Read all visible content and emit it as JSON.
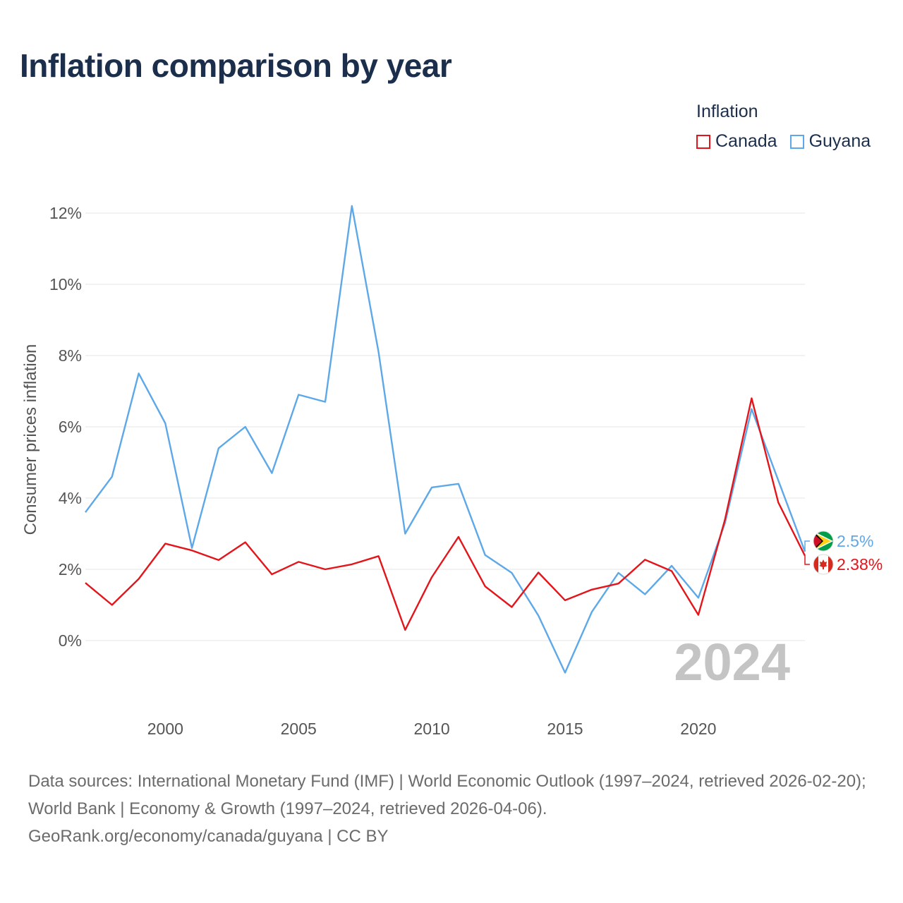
{
  "title": "Inflation comparison by year",
  "legend": {
    "title": "Inflation",
    "items": [
      {
        "label": "Canada",
        "color": "#e3151a"
      },
      {
        "label": "Guyana",
        "color": "#5da8e8"
      }
    ]
  },
  "chart_data": {
    "type": "line",
    "title": "Inflation comparison by year",
    "xlabel": "",
    "ylabel": "Consumer prices inflation",
    "x": [
      1997,
      1998,
      1999,
      2000,
      2001,
      2002,
      2003,
      2004,
      2005,
      2006,
      2007,
      2008,
      2009,
      2010,
      2011,
      2012,
      2013,
      2014,
      2015,
      2016,
      2017,
      2018,
      2019,
      2020,
      2021,
      2022,
      2023,
      2024
    ],
    "xlim": [
      1997,
      2024
    ],
    "ylim": [
      -2,
      12
    ],
    "xticks": [
      2000,
      2005,
      2010,
      2015,
      2020
    ],
    "xtick_labels": [
      "2000",
      "2005",
      "2010",
      "2015",
      "2020"
    ],
    "yticks": [
      0,
      2,
      4,
      6,
      8,
      10,
      12
    ],
    "ytick_labels": [
      "0%",
      "2%",
      "4%",
      "6%",
      "8%",
      "10%",
      "12%"
    ],
    "grid": true,
    "legend_position": "top-right",
    "current_year": "2024",
    "series": [
      {
        "name": "Canada",
        "color": "#e3151a",
        "values": [
          1.62,
          1.0,
          1.73,
          2.72,
          2.53,
          2.26,
          2.76,
          1.86,
          2.21,
          2.0,
          2.14,
          2.37,
          0.3,
          1.78,
          2.91,
          1.52,
          0.94,
          1.91,
          1.13,
          1.43,
          1.6,
          2.27,
          1.95,
          0.72,
          3.4,
          6.8,
          3.88,
          2.38
        ],
        "end_label": "2.38%"
      },
      {
        "name": "Guyana",
        "color": "#5da8e8",
        "values": [
          3.6,
          4.6,
          7.5,
          6.1,
          2.6,
          5.4,
          6.0,
          4.7,
          6.9,
          6.7,
          12.2,
          8.1,
          3.0,
          4.3,
          4.4,
          2.4,
          1.9,
          0.7,
          -0.9,
          0.8,
          1.9,
          1.3,
          2.1,
          1.2,
          3.3,
          6.5,
          4.5,
          2.5
        ],
        "end_label": "2.5%"
      }
    ]
  },
  "footer": {
    "line1": "Data sources: International Monetary Fund (IMF) | World Economic Outlook (1997–2024, retrieved 2026-02-20); World Bank | Economy & Growth (1997–2024, retrieved 2026-04-06).",
    "line2": "GeoRank.org/economy/canada/guyana | CC BY"
  }
}
